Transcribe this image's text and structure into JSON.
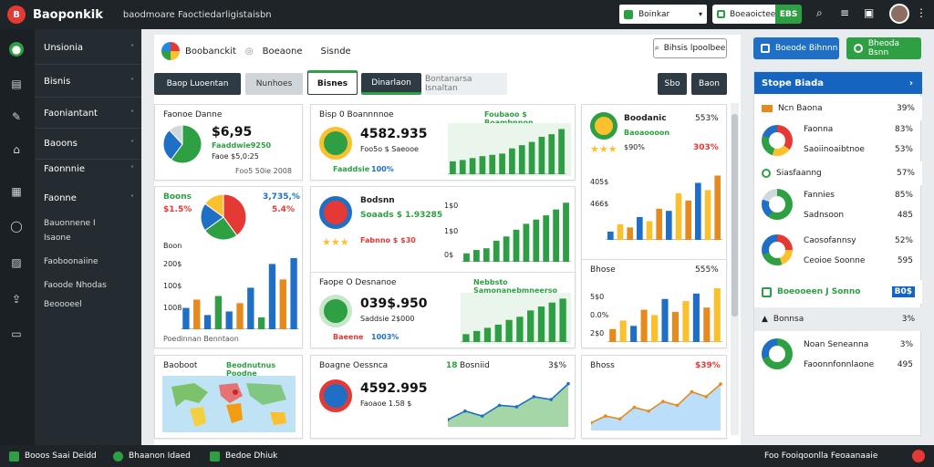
{
  "app": {
    "title": "Baoponkik",
    "subtitle": "baodmoare Faoctiedarligistaisbn",
    "top_select": "Boinkar",
    "top_pill_label": "Boeaoictee",
    "top_pill_badge": "EBS"
  },
  "sidebar": {
    "items": [
      {
        "label": "Unsionia",
        "chevron": "˅"
      },
      {
        "label": "Bisnis",
        "chevron": "˅"
      },
      {
        "label": "Faoniantant",
        "chevron": "˅"
      },
      {
        "label": "Baoons",
        "chevron": "˅"
      },
      {
        "label": "Faonnnie",
        "chevron": "˅"
      },
      {
        "label": "Faonne",
        "chevron": "˅"
      },
      {
        "label": "Bauonnene I"
      },
      {
        "label": "Isaone"
      },
      {
        "label": "Faoboonaiine"
      },
      {
        "label": "Faoode Nhodas"
      },
      {
        "label": "Beoooeel"
      }
    ]
  },
  "main": {
    "breadcrumb": [
      "Boobanckit",
      "Boeaone",
      "Sisnde"
    ],
    "search_label": "Bihsis lpoolbee",
    "tabs": [
      "Baop Luoentan",
      "Nunhoes",
      "Bisnes",
      "Dinarlaon",
      "Bontanarsa Isnaltan"
    ],
    "tab_icon_1": "Sbo",
    "tab_icon_2": "Baon",
    "cards": {
      "c1": {
        "title": "Faonoe Danne",
        "big": "$6,95",
        "sub1": "Faaddwie9250",
        "sub2": "Faoe $5,0:25",
        "foot": "Foo5 50ie 2008"
      },
      "c2": {
        "label1": "Boons",
        "val1": "3,735,%",
        "label2": "$1.5%",
        "val2": "5.4%",
        "ticks": [
          "Boon",
          "200$",
          "100$",
          "1008"
        ],
        "foot": "Poedinnan Benntaon"
      },
      "c3": {
        "title": "Bisp 0 Boannnnoe",
        "right": "Foubaoo $ Boambnnon",
        "big": "4582.935",
        "sub": "Foo5o $ Saeooe",
        "foot1": "Faaddsie",
        "foot2": "100%"
      },
      "c4": {
        "title": "Bodsnn",
        "sub": "Soaads $ 1.93285",
        "foot": "Fabnno $ $30",
        "ticks": [
          "1$0",
          "1$0",
          "0$"
        ]
      },
      "c5": {
        "title": "Faope O Desnanoe",
        "right": "Nebbsto Samonanebmneerso",
        "big": "039$.950",
        "sub": "Saddsie 2$000",
        "foot1": "Baeene",
        "foot2": "1003%"
      },
      "c6": {
        "title": "Boodanic",
        "sub": "Baoaoooon",
        "v1": "553%",
        "v2": "303%",
        "ticks": [
          "405$",
          "466$"
        ],
        "foot": "$90%"
      },
      "c7": {
        "title": "Baoboot",
        "right": "Beodnutnus Poodne"
      },
      "c8": {
        "title": "Boagne Oessnca",
        "big": "4592.995",
        "sub": "Faoaoe 1.58 $",
        "right1": "18",
        "right2": "Bosniid",
        "right3": "3$%"
      },
      "c9": {
        "title": "Bhose",
        "right": "$38$",
        "bars_right": "555%",
        "ticks": [
          "5$0",
          "0.0%",
          "2$0"
        ]
      },
      "c10": {
        "title": "Bhoss",
        "right": "$39%"
      }
    }
  },
  "right_panel": {
    "btn1": "Boeode Bihnnn",
    "btn2": "Bheoda Bsnn",
    "header": "Stope Biada",
    "header_arrow": "›",
    "rows": [
      {
        "label": "Ncn Baona",
        "value": "39%"
      },
      {
        "label": "Faonna",
        "value": "83%"
      },
      {
        "label": "Saoiinoaibtnoe",
        "value": "53%"
      },
      {
        "label": "Siasfaanng",
        "value": "57%"
      },
      {
        "label": "Fannies",
        "value": "85%"
      },
      {
        "label": "Sadnsoon",
        "value": "485"
      },
      {
        "label": "Caosofannsy",
        "value": "52%"
      },
      {
        "label": "Ceoioe Soonne",
        "value": "595"
      },
      {
        "label": "Boeooeen J Sonno",
        "value": "B0$"
      },
      {
        "label": "Bonnsa",
        "value": "3%"
      },
      {
        "label": "Noan Seneanna",
        "value": "3%"
      },
      {
        "label": "Faoonnfonnlaone",
        "value": "495"
      }
    ]
  },
  "bottom": {
    "items": [
      "Booos Saai Deidd",
      "Bhaanon Idaed",
      "Bedoe Dhiuk"
    ],
    "right": "Foo  Fooiqoonlla Feoaanaaie"
  },
  "chart_data": [
    {
      "type": "pie",
      "values": [
        60,
        28,
        12
      ],
      "colors": [
        "#2ea043",
        "#1e6fc5",
        "#cfd8dc"
      ]
    },
    {
      "type": "pie",
      "values": [
        40,
        25,
        20,
        15
      ],
      "colors": [
        "#e53935",
        "#2ea043",
        "#1e6fc5",
        "#fbc02d"
      ]
    },
    {
      "type": "bar",
      "values": [
        18,
        25,
        12,
        28,
        15,
        22,
        35,
        10,
        55,
        42,
        60
      ],
      "colors": [
        "#1e6fc5",
        "#e68a1e",
        "#1e6fc5",
        "#2ea043"
      ]
    },
    {
      "type": "bar",
      "values": [
        20,
        22,
        25,
        28,
        30,
        32,
        40,
        45,
        50,
        58,
        62,
        70
      ]
    },
    {
      "type": "bar",
      "values": [
        10,
        14,
        16,
        25,
        30,
        38,
        45,
        50,
        55,
        62,
        70
      ]
    },
    {
      "type": "bar",
      "values": [
        8,
        15,
        12,
        22,
        18,
        30,
        28,
        45,
        38,
        55,
        48,
        62
      ],
      "colors": [
        "#1e6fc5",
        "#fbc02d",
        "#e68a1e"
      ]
    },
    {
      "type": "bar",
      "values": [
        10,
        14,
        18,
        22,
        28,
        32,
        40,
        45,
        50,
        55
      ]
    },
    {
      "type": "line",
      "values": [
        10,
        22,
        15,
        30,
        28,
        42,
        38,
        60
      ]
    },
    {
      "type": "bar",
      "values": [
        12,
        20,
        15,
        30,
        25,
        40,
        28,
        38,
        45,
        32,
        50
      ],
      "colors": [
        "#e68a1e",
        "#fbc02d",
        "#1e6fc5"
      ]
    },
    {
      "type": "line",
      "values": [
        8,
        15,
        12,
        24,
        20,
        30,
        26,
        40,
        35,
        48
      ]
    }
  ]
}
